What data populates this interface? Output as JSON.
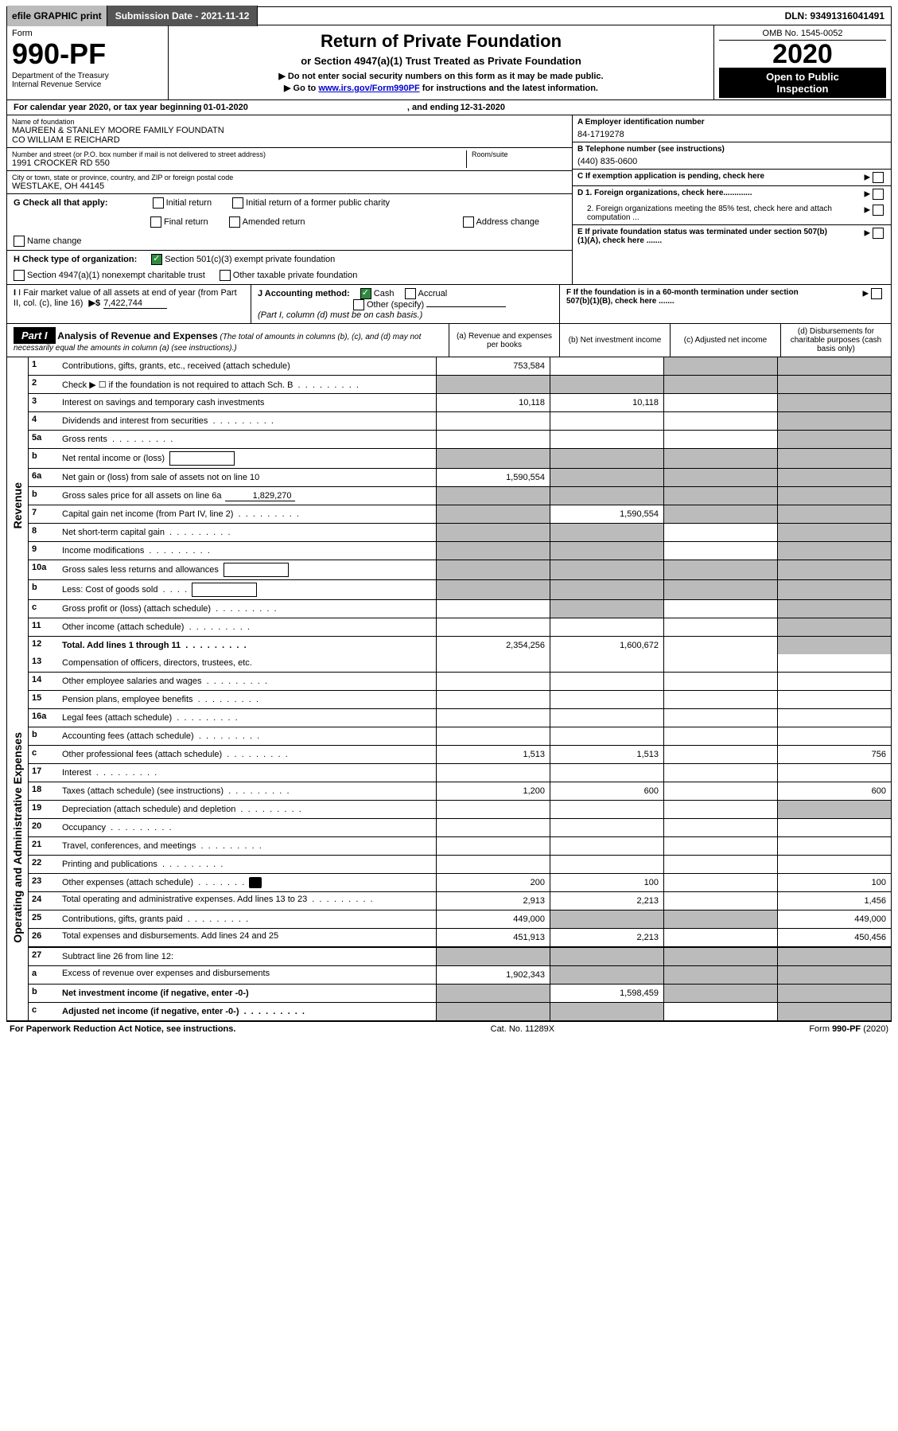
{
  "topbar": {
    "efile": "efile GRAPHIC print",
    "submission": "Submission Date - 2021-11-12",
    "dln": "DLN: 93491316041491"
  },
  "header": {
    "form_label": "Form",
    "form_number": "990-PF",
    "dept": "Department of the Treasury",
    "irs": "Internal Revenue Service",
    "title": "Return of Private Foundation",
    "subtitle": "or Section 4947(a)(1) Trust Treated as Private Foundation",
    "arrow_instr1": "▶ Do not enter social security numbers on this form as it may be made public.",
    "arrow_instr2_pre": "▶ Go to ",
    "arrow_instr2_link": "www.irs.gov/Form990PF",
    "arrow_instr2_post": " for instructions and the latest information.",
    "omb": "OMB No. 1545-0052",
    "year": "2020",
    "otp_line1": "Open to Public",
    "otp_line2": "Inspection"
  },
  "calline": {
    "pre": "For calendar year 2020, or tax year beginning ",
    "begin": "01-01-2020",
    "mid": ", and ending ",
    "end": "12-31-2020"
  },
  "entity": {
    "name_label": "Name of foundation",
    "name_line1": "MAUREEN & STANLEY MOORE FAMILY FOUNDATN",
    "name_line2": "CO WILLIAM E REICHARD",
    "addr_label": "Number and street (or P.O. box number if mail is not delivered to street address)",
    "room_label": "Room/suite",
    "addr": "1991 CROCKER RD 550",
    "city_label": "City or town, state or province, country, and ZIP or foreign postal code",
    "city": "WESTLAKE, OH  44145",
    "a_label": "A Employer identification number",
    "a_val": "84-1719278",
    "b_label": "B Telephone number (see instructions)",
    "b_val": "(440) 835-0600",
    "c_label": "C If exemption application is pending, check here",
    "d1_label": "D 1. Foreign organizations, check here.............",
    "d2_label": "2. Foreign organizations meeting the 85% test, check here and attach computation ...",
    "e_label": "E  If private foundation status was terminated under section 507(b)(1)(A), check here .......",
    "f_label": "F  If the foundation is in a 60-month termination under section 507(b)(1)(B), check here ......."
  },
  "checks": {
    "g_label": "G Check all that apply:",
    "g_opts": [
      "Initial return",
      "Initial return of a former public charity",
      "Final return",
      "Amended return",
      "Address change",
      "Name change"
    ],
    "h_label": "H Check type of organization:",
    "h_opts": [
      "Section 501(c)(3) exempt private foundation",
      "Section 4947(a)(1) nonexempt charitable trust",
      "Other taxable private foundation"
    ],
    "i_label_pre": "I Fair market value of all assets at end of year (from Part II, col. (c), line 16)",
    "i_val": "7,422,744",
    "j_label": "J Accounting method:",
    "j_opts": [
      "Cash",
      "Accrual",
      "Other (specify)"
    ],
    "j_note": "(Part I, column (d) must be on cash basis.)"
  },
  "part1": {
    "label": "Part I",
    "head_strong": "Analysis of Revenue and Expenses",
    "head_rest": " (The total of amounts in columns (b), (c), and (d) may not necessarily equal the amounts in column (a) (see instructions).)",
    "cols": {
      "a": "(a) Revenue and expenses per books",
      "b": "(b) Net investment income",
      "c": "(c) Adjusted net income",
      "d": "(d) Disbursements for charitable purposes (cash basis only)"
    }
  },
  "sidelabels": {
    "revenue": "Revenue",
    "expenses": "Operating and Administrative Expenses"
  },
  "rows": [
    {
      "no": "1",
      "desc": "Contributions, gifts, grants, etc., received (attach schedule)",
      "a": "753,584",
      "b": "",
      "c": "grey",
      "d": "grey",
      "section": "rev"
    },
    {
      "no": "2",
      "desc": "Check ▶ ☐ if the foundation is not required to attach Sch. B",
      "a": "grey",
      "b": "grey",
      "c": "grey",
      "d": "grey",
      "section": "rev",
      "dots": true
    },
    {
      "no": "3",
      "desc": "Interest on savings and temporary cash investments",
      "a": "10,118",
      "b": "10,118",
      "c": "",
      "d": "grey",
      "section": "rev"
    },
    {
      "no": "4",
      "desc": "Dividends and interest from securities",
      "a": "",
      "b": "",
      "c": "",
      "d": "grey",
      "section": "rev",
      "dots": true
    },
    {
      "no": "5a",
      "desc": "Gross rents",
      "a": "",
      "b": "",
      "c": "",
      "d": "grey",
      "section": "rev",
      "dots": true
    },
    {
      "no": "b",
      "desc": "Net rental income or (loss)",
      "a": "grey",
      "b": "grey",
      "c": "grey",
      "d": "grey",
      "section": "rev",
      "inlinebox": true
    },
    {
      "no": "6a",
      "desc": "Net gain or (loss) from sale of assets not on line 10",
      "a": "1,590,554",
      "b": "grey",
      "c": "grey",
      "d": "grey",
      "section": "rev"
    },
    {
      "no": "b",
      "desc": "Gross sales price for all assets on line 6a",
      "a": "grey",
      "b": "grey",
      "c": "grey",
      "d": "grey",
      "section": "rev",
      "inlineval": "1,829,270"
    },
    {
      "no": "7",
      "desc": "Capital gain net income (from Part IV, line 2)",
      "a": "grey",
      "b": "1,590,554",
      "c": "grey",
      "d": "grey",
      "section": "rev",
      "dots": true
    },
    {
      "no": "8",
      "desc": "Net short-term capital gain",
      "a": "grey",
      "b": "grey",
      "c": "",
      "d": "grey",
      "section": "rev",
      "dots": true
    },
    {
      "no": "9",
      "desc": "Income modifications",
      "a": "grey",
      "b": "grey",
      "c": "",
      "d": "grey",
      "section": "rev",
      "dots": true
    },
    {
      "no": "10a",
      "desc": "Gross sales less returns and allowances",
      "a": "grey",
      "b": "grey",
      "c": "grey",
      "d": "grey",
      "section": "rev",
      "inlinebox": true
    },
    {
      "no": "b",
      "desc": "Less: Cost of goods sold",
      "a": "grey",
      "b": "grey",
      "c": "grey",
      "d": "grey",
      "section": "rev",
      "inlinebox": true,
      "dots": true
    },
    {
      "no": "c",
      "desc": "Gross profit or (loss) (attach schedule)",
      "a": "",
      "b": "grey",
      "c": "",
      "d": "grey",
      "section": "rev",
      "dots": true
    },
    {
      "no": "11",
      "desc": "Other income (attach schedule)",
      "a": "",
      "b": "",
      "c": "",
      "d": "grey",
      "section": "rev",
      "dots": true
    },
    {
      "no": "12",
      "desc": "Total. Add lines 1 through 11",
      "a": "2,354,256",
      "b": "1,600,672",
      "c": "",
      "d": "grey",
      "section": "rev",
      "bold": true,
      "dots": true,
      "break": true
    },
    {
      "no": "13",
      "desc": "Compensation of officers, directors, trustees, etc.",
      "a": "",
      "b": "",
      "c": "",
      "d": "",
      "section": "exp"
    },
    {
      "no": "14",
      "desc": "Other employee salaries and wages",
      "a": "",
      "b": "",
      "c": "",
      "d": "",
      "section": "exp",
      "dots": true
    },
    {
      "no": "15",
      "desc": "Pension plans, employee benefits",
      "a": "",
      "b": "",
      "c": "",
      "d": "",
      "section": "exp",
      "dots": true
    },
    {
      "no": "16a",
      "desc": "Legal fees (attach schedule)",
      "a": "",
      "b": "",
      "c": "",
      "d": "",
      "section": "exp",
      "dots": true
    },
    {
      "no": "b",
      "desc": "Accounting fees (attach schedule)",
      "a": "",
      "b": "",
      "c": "",
      "d": "",
      "section": "exp",
      "dots": true
    },
    {
      "no": "c",
      "desc": "Other professional fees (attach schedule)",
      "a": "1,513",
      "b": "1,513",
      "c": "",
      "d": "756",
      "section": "exp",
      "dots": true
    },
    {
      "no": "17",
      "desc": "Interest",
      "a": "",
      "b": "",
      "c": "",
      "d": "",
      "section": "exp",
      "dots": true
    },
    {
      "no": "18",
      "desc": "Taxes (attach schedule) (see instructions)",
      "a": "1,200",
      "b": "600",
      "c": "",
      "d": "600",
      "section": "exp",
      "dots": true
    },
    {
      "no": "19",
      "desc": "Depreciation (attach schedule) and depletion",
      "a": "",
      "b": "",
      "c": "",
      "d": "grey",
      "section": "exp",
      "dots": true
    },
    {
      "no": "20",
      "desc": "Occupancy",
      "a": "",
      "b": "",
      "c": "",
      "d": "",
      "section": "exp",
      "dots": true
    },
    {
      "no": "21",
      "desc": "Travel, conferences, and meetings",
      "a": "",
      "b": "",
      "c": "",
      "d": "",
      "section": "exp",
      "dots": true
    },
    {
      "no": "22",
      "desc": "Printing and publications",
      "a": "",
      "b": "",
      "c": "",
      "d": "",
      "section": "exp",
      "dots": true
    },
    {
      "no": "23",
      "desc": "Other expenses (attach schedule)",
      "a": "200",
      "b": "100",
      "c": "",
      "d": "100",
      "section": "exp",
      "dots": true,
      "icon": true
    },
    {
      "no": "24",
      "desc": "Total operating and administrative expenses. Add lines 13 to 23",
      "a": "2,913",
      "b": "2,213",
      "c": "",
      "d": "1,456",
      "section": "exp",
      "bold": true,
      "dots": true,
      "multi": true
    },
    {
      "no": "25",
      "desc": "Contributions, gifts, grants paid",
      "a": "449,000",
      "b": "grey",
      "c": "grey",
      "d": "449,000",
      "section": "exp",
      "dots": true
    },
    {
      "no": "26",
      "desc": "Total expenses and disbursements. Add lines 24 and 25",
      "a": "451,913",
      "b": "2,213",
      "c": "",
      "d": "450,456",
      "section": "exp",
      "bold": true,
      "multi": true,
      "break": true
    },
    {
      "no": "27",
      "desc": "Subtract line 26 from line 12:",
      "a": "grey",
      "b": "grey",
      "c": "grey",
      "d": "grey",
      "section": "exp"
    },
    {
      "no": "a",
      "desc": "Excess of revenue over expenses and disbursements",
      "a": "1,902,343",
      "b": "grey",
      "c": "grey",
      "d": "grey",
      "section": "exp",
      "bold": true,
      "multi": true
    },
    {
      "no": "b",
      "desc": "Net investment income (if negative, enter -0-)",
      "a": "grey",
      "b": "1,598,459",
      "c": "grey",
      "d": "grey",
      "section": "exp",
      "bold": true
    },
    {
      "no": "c",
      "desc": "Adjusted net income (if negative, enter -0-)",
      "a": "grey",
      "b": "grey",
      "c": "",
      "d": "grey",
      "section": "exp",
      "bold": true,
      "dots": true
    }
  ],
  "footer": {
    "left": "For Paperwork Reduction Act Notice, see instructions.",
    "middle": "Cat. No. 11289X",
    "right": "Form 990-PF (2020)"
  },
  "colors": {
    "black": "#000000",
    "white": "#ffffff",
    "grey_bg": "#bbbbbb",
    "dark_grey": "#555555",
    "link": "#0000cc",
    "check_green": "#2e8b3d"
  }
}
